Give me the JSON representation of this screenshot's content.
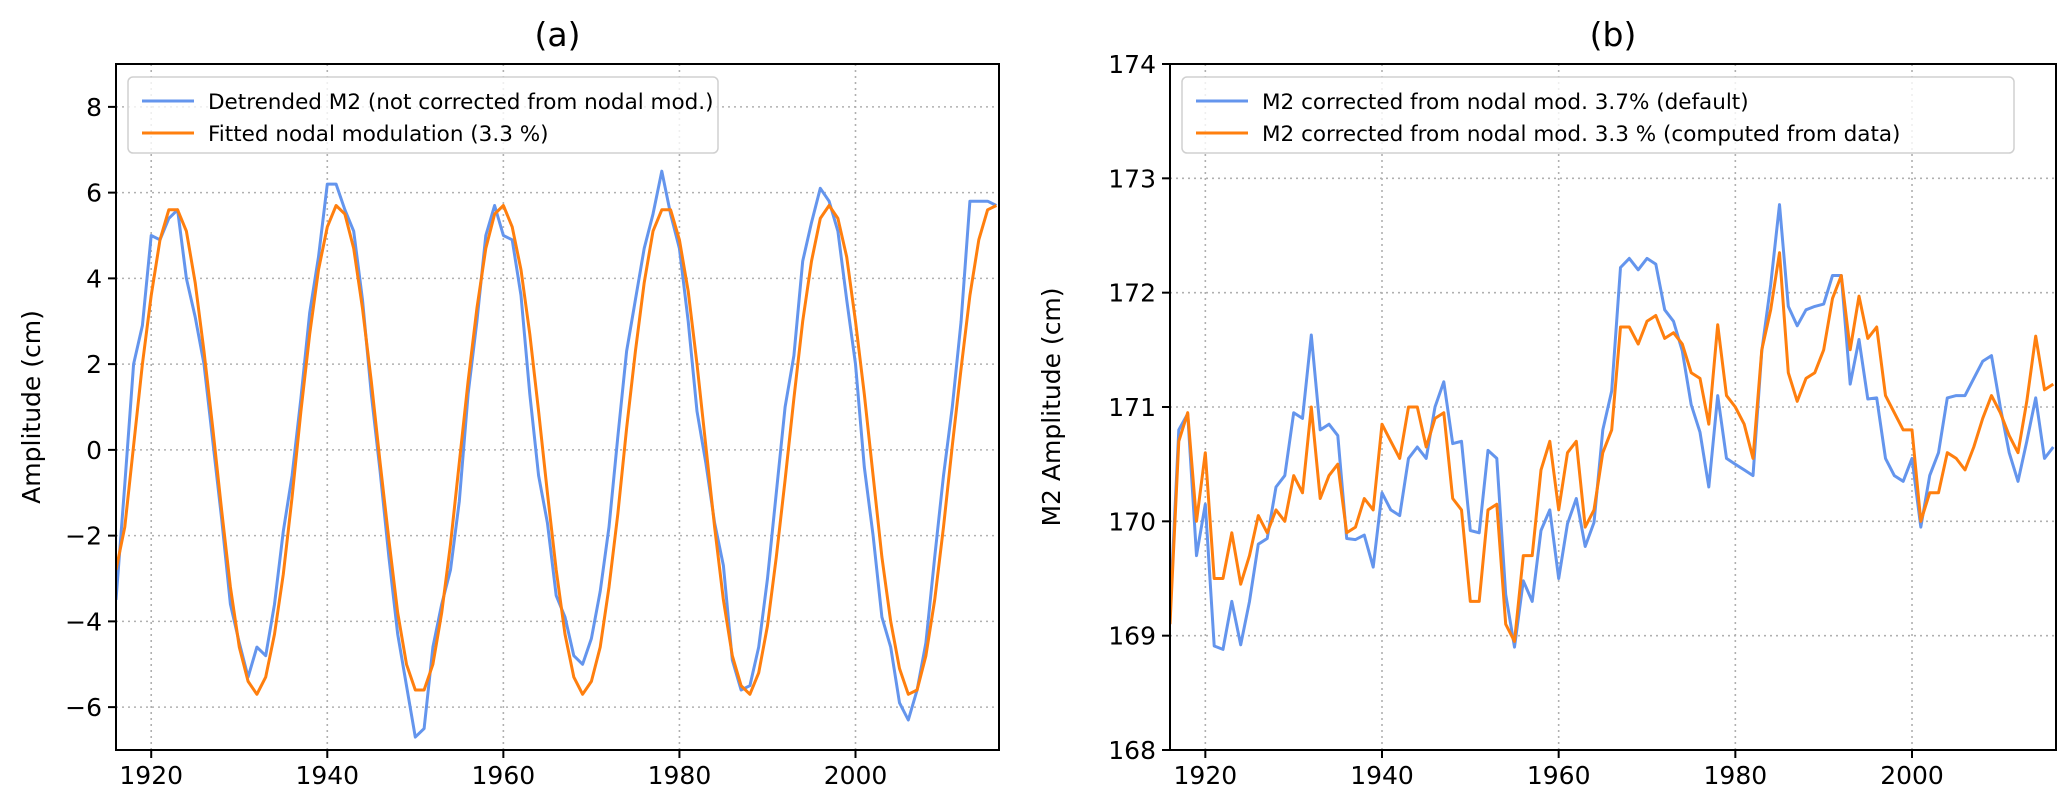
{
  "chart_data": [
    {
      "type": "line",
      "title": "(a)",
      "xlabel": "",
      "ylabel": "Amplitude (cm)",
      "xlim": [
        1916,
        2016.3
      ],
      "ylim": [
        -7,
        9
      ],
      "xticks": [
        1920,
        1940,
        1960,
        1980,
        2000
      ],
      "yticks": [
        -6,
        -4,
        -2,
        0,
        2,
        4,
        6,
        8
      ],
      "grid": true,
      "legend_position": "top-left",
      "x_start": 1916,
      "x_step": 1,
      "series": [
        {
          "name": "Detrended M2 (not corrected from nodal mod.)",
          "color": "#6495ED",
          "values": [
            -3.5,
            -0.8,
            2.0,
            2.9,
            5.0,
            4.9,
            5.4,
            5.6,
            4.0,
            3.1,
            2.0,
            0.2,
            -1.6,
            -3.6,
            -4.5,
            -5.3,
            -4.6,
            -4.8,
            -3.6,
            -1.9,
            -0.6,
            1.2,
            3.2,
            4.5,
            6.2,
            6.2,
            5.6,
            5.1,
            3.5,
            1.3,
            -0.5,
            -2.5,
            -4.3,
            -5.5,
            -6.7,
            -6.5,
            -4.6,
            -3.6,
            -2.8,
            -1.2,
            1.3,
            3.0,
            5.0,
            5.7,
            5.0,
            4.9,
            3.6,
            1.3,
            -0.6,
            -1.7,
            -3.4,
            -3.9,
            -4.8,
            -5.0,
            -4.4,
            -3.3,
            -1.8,
            0.3,
            2.3,
            3.5,
            4.7,
            5.5,
            6.5,
            5.5,
            4.7,
            3.0,
            0.9,
            -0.3,
            -1.7,
            -2.7,
            -4.9,
            -5.6,
            -5.5,
            -4.6,
            -3.0,
            -1.0,
            1.0,
            2.2,
            4.4,
            5.3,
            6.1,
            5.8,
            5.1,
            3.5,
            2.0,
            -0.4,
            -2.0,
            -3.9,
            -4.6,
            -5.9,
            -6.3,
            -5.6,
            -4.5,
            -2.5,
            -0.6,
            1.0,
            3.0,
            5.8,
            5.8,
            5.8,
            5.7
          ]
        },
        {
          "name": "Fitted nodal modulation (3.3 %)",
          "color": "#FF7F0E",
          "values": [
            -2.8,
            -1.8,
            0.1,
            2.0,
            3.6,
            4.9,
            5.6,
            5.6,
            5.1,
            3.9,
            2.3,
            0.5,
            -1.4,
            -3.2,
            -4.6,
            -5.4,
            -5.7,
            -5.3,
            -4.3,
            -2.9,
            -1.1,
            0.9,
            2.7,
            4.2,
            5.2,
            5.7,
            5.5,
            4.7,
            3.3,
            1.6,
            -0.3,
            -2.1,
            -3.8,
            -5.0,
            -5.6,
            -5.6,
            -5.0,
            -3.8,
            -2.2,
            -0.3,
            1.6,
            3.3,
            4.7,
            5.5,
            5.7,
            5.2,
            4.2,
            2.7,
            0.9,
            -1.0,
            -2.8,
            -4.3,
            -5.3,
            -5.7,
            -5.4,
            -4.6,
            -3.2,
            -1.5,
            0.5,
            2.3,
            3.9,
            5.1,
            5.6,
            5.6,
            4.9,
            3.7,
            2.0,
            0.1,
            -1.8,
            -3.5,
            -4.8,
            -5.5,
            -5.7,
            -5.2,
            -4.1,
            -2.5,
            -0.7,
            1.2,
            3.0,
            4.4,
            5.4,
            5.7,
            5.4,
            4.5,
            3.0,
            1.3,
            -0.6,
            -2.5,
            -4.0,
            -5.1,
            -5.7,
            -5.6,
            -4.8,
            -3.5,
            -1.8,
            0.1,
            1.9,
            3.6,
            4.9,
            5.6,
            5.7
          ]
        }
      ]
    },
    {
      "type": "line",
      "title": "(b)",
      "xlabel": "",
      "ylabel": "M2 Amplitude (cm)",
      "xlim": [
        1916,
        2016.3
      ],
      "ylim": [
        168,
        174
      ],
      "xticks": [
        1920,
        1940,
        1960,
        1980,
        2000
      ],
      "yticks": [
        168,
        169,
        170,
        171,
        172,
        173,
        174
      ],
      "grid": true,
      "legend_position": "top-left",
      "x_start": 1916,
      "x_step": 1,
      "series": [
        {
          "name": "M2 corrected from nodal mod. 3.7% (default)",
          "color": "#6495ED",
          "values": [
            169.2,
            170.8,
            170.94,
            169.7,
            170.15,
            168.91,
            168.88,
            169.3,
            168.92,
            169.3,
            169.8,
            169.85,
            170.3,
            170.4,
            170.95,
            170.9,
            171.63,
            170.8,
            170.85,
            170.75,
            169.85,
            169.84,
            169.88,
            169.6,
            170.25,
            170.1,
            170.05,
            170.55,
            170.65,
            170.55,
            171.0,
            171.22,
            170.68,
            170.7,
            169.92,
            169.9,
            170.62,
            170.55,
            169.36,
            168.9,
            169.48,
            169.3,
            169.92,
            170.1,
            169.5,
            169.98,
            170.2,
            169.78,
            169.99,
            170.8,
            171.14,
            172.22,
            172.3,
            172.2,
            172.3,
            172.25,
            171.85,
            171.75,
            171.49,
            171.02,
            170.78,
            170.3,
            171.1,
            170.55,
            170.5,
            170.45,
            170.4,
            171.49,
            172.07,
            172.77,
            171.88,
            171.71,
            171.85,
            171.88,
            171.9,
            172.15,
            172.15,
            171.2,
            171.59,
            171.07,
            171.08,
            170.55,
            170.4,
            170.35,
            170.55,
            169.95,
            170.4,
            170.6,
            171.08,
            171.1,
            171.1,
            171.25,
            171.4,
            171.45,
            171.0,
            170.6,
            170.35,
            170.7,
            171.08,
            170.55,
            170.65
          ]
        },
        {
          "name": "M2 corrected from nodal mod. 3.3 % (computed from data)",
          "color": "#FF7F0E",
          "values": [
            169.1,
            170.7,
            170.95,
            170.0,
            170.6,
            169.5,
            169.5,
            169.9,
            169.45,
            169.7,
            170.05,
            169.9,
            170.1,
            170.0,
            170.4,
            170.25,
            171.0,
            170.2,
            170.4,
            170.5,
            169.9,
            169.95,
            170.2,
            170.1,
            170.85,
            170.7,
            170.55,
            171.0,
            171.0,
            170.65,
            170.9,
            170.95,
            170.2,
            170.1,
            169.3,
            169.3,
            170.1,
            170.15,
            169.1,
            168.95,
            169.7,
            169.7,
            170.45,
            170.7,
            170.1,
            170.6,
            170.7,
            169.95,
            170.1,
            170.6,
            170.8,
            171.7,
            171.7,
            171.55,
            171.75,
            171.8,
            171.6,
            171.65,
            171.55,
            171.3,
            171.25,
            170.85,
            171.72,
            171.1,
            171.0,
            170.85,
            170.55,
            171.5,
            171.85,
            172.35,
            171.3,
            171.05,
            171.25,
            171.3,
            171.5,
            171.95,
            172.15,
            171.5,
            171.97,
            171.6,
            171.7,
            171.1,
            170.95,
            170.8,
            170.8,
            170.0,
            170.25,
            170.25,
            170.6,
            170.55,
            170.45,
            170.65,
            170.9,
            171.1,
            170.95,
            170.75,
            170.6,
            171.05,
            171.62,
            171.15,
            171.2
          ]
        }
      ]
    }
  ]
}
